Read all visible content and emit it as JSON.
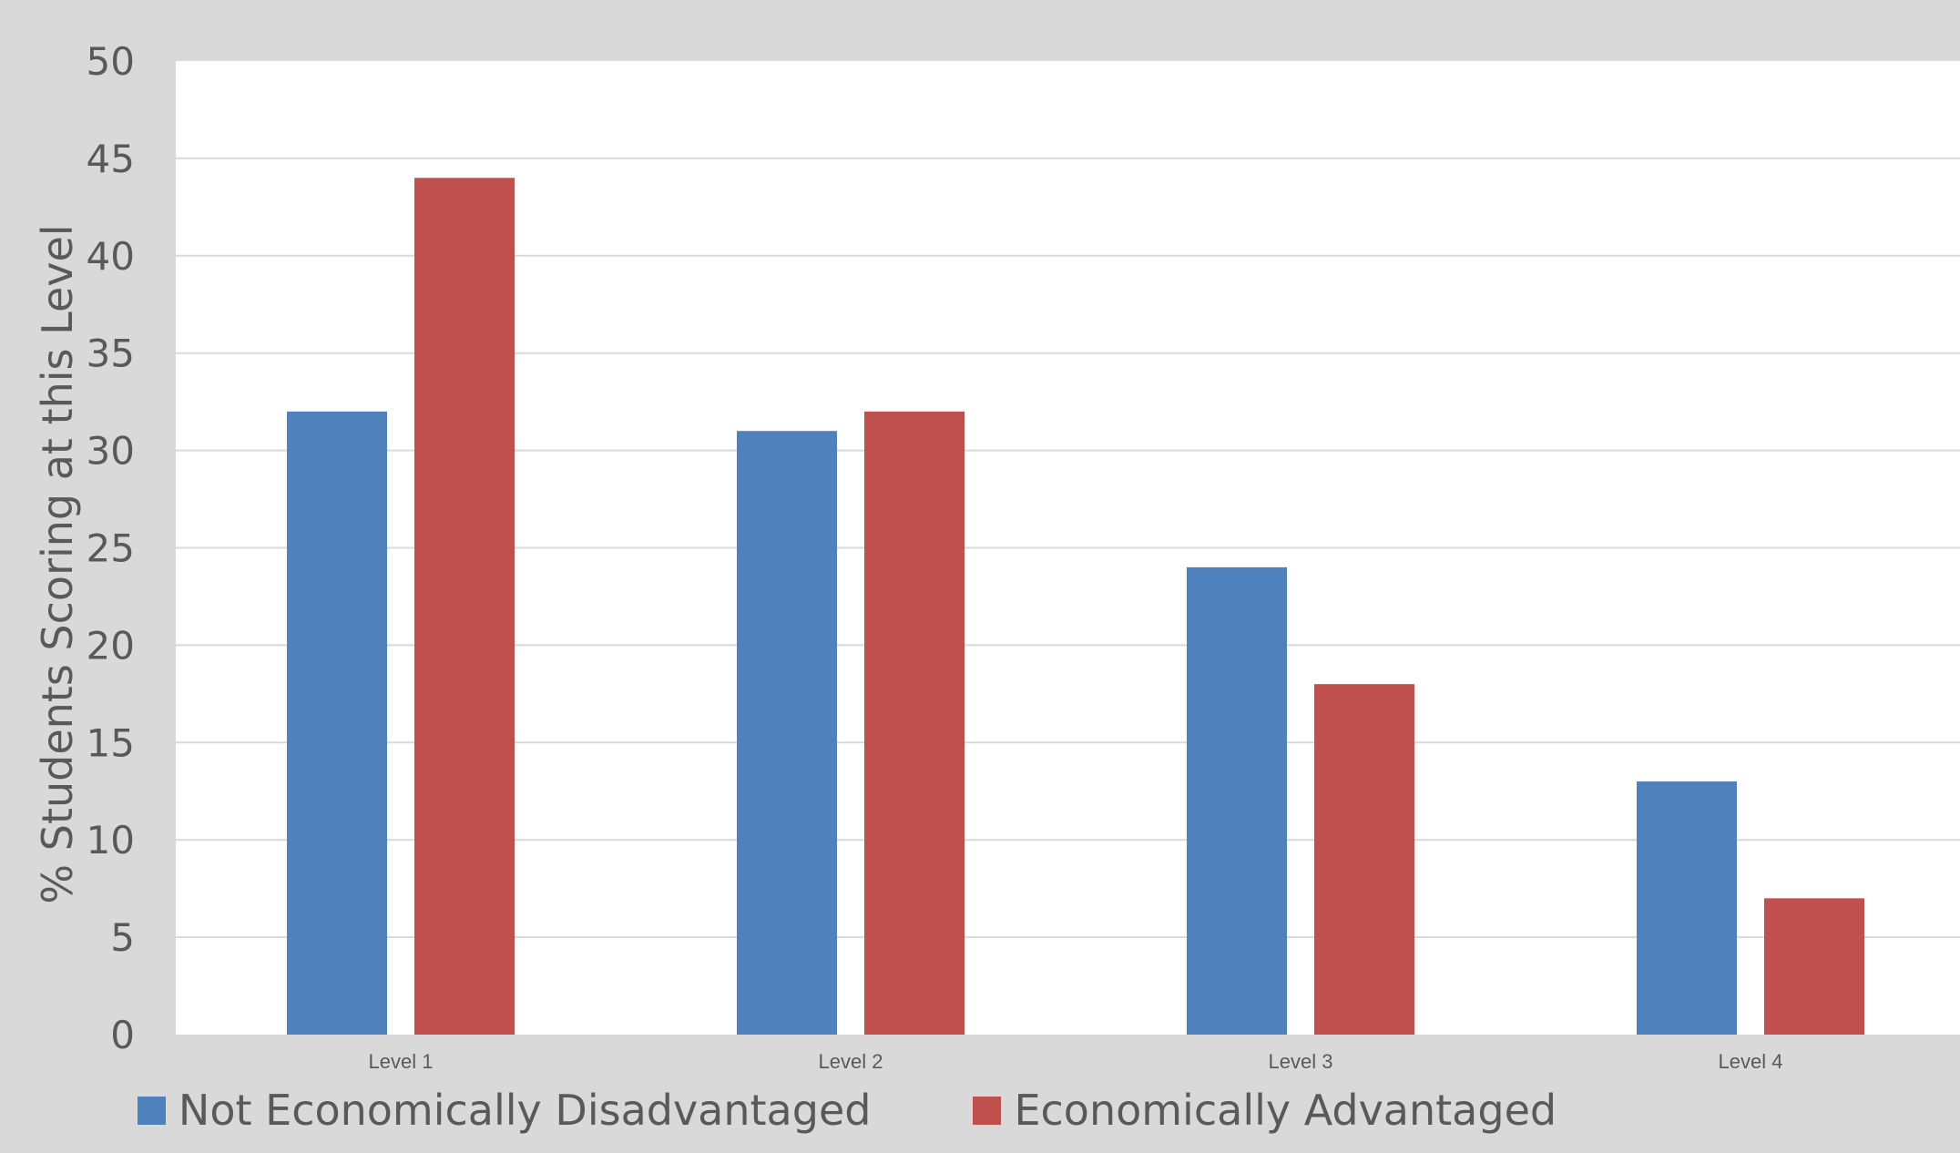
{
  "chart_data": {
    "type": "bar",
    "title": "",
    "xlabel": "",
    "ylabel": "% Students Scoring at this Level",
    "categories": [
      "Level 1",
      "Level 2",
      "Level 3",
      "Level 4"
    ],
    "series": [
      {
        "name": "Not Economically Disadvantaged",
        "values": [
          32,
          31,
          24,
          13
        ],
        "color": "#4f81bd"
      },
      {
        "name": "Economically Advantaged",
        "values": [
          44,
          32,
          18,
          7
        ],
        "color": "#c0504d"
      }
    ],
    "ylim": [
      0,
      50
    ],
    "yticks": [
      0,
      5,
      10,
      15,
      20,
      25,
      30,
      35,
      40,
      45,
      50
    ],
    "grid": true,
    "legend_position": "bottom",
    "colors": {
      "background": "#d9d9d9",
      "plot_area": "#ffffff",
      "gridline": "#d9d9d9",
      "text": "#595959"
    }
  }
}
